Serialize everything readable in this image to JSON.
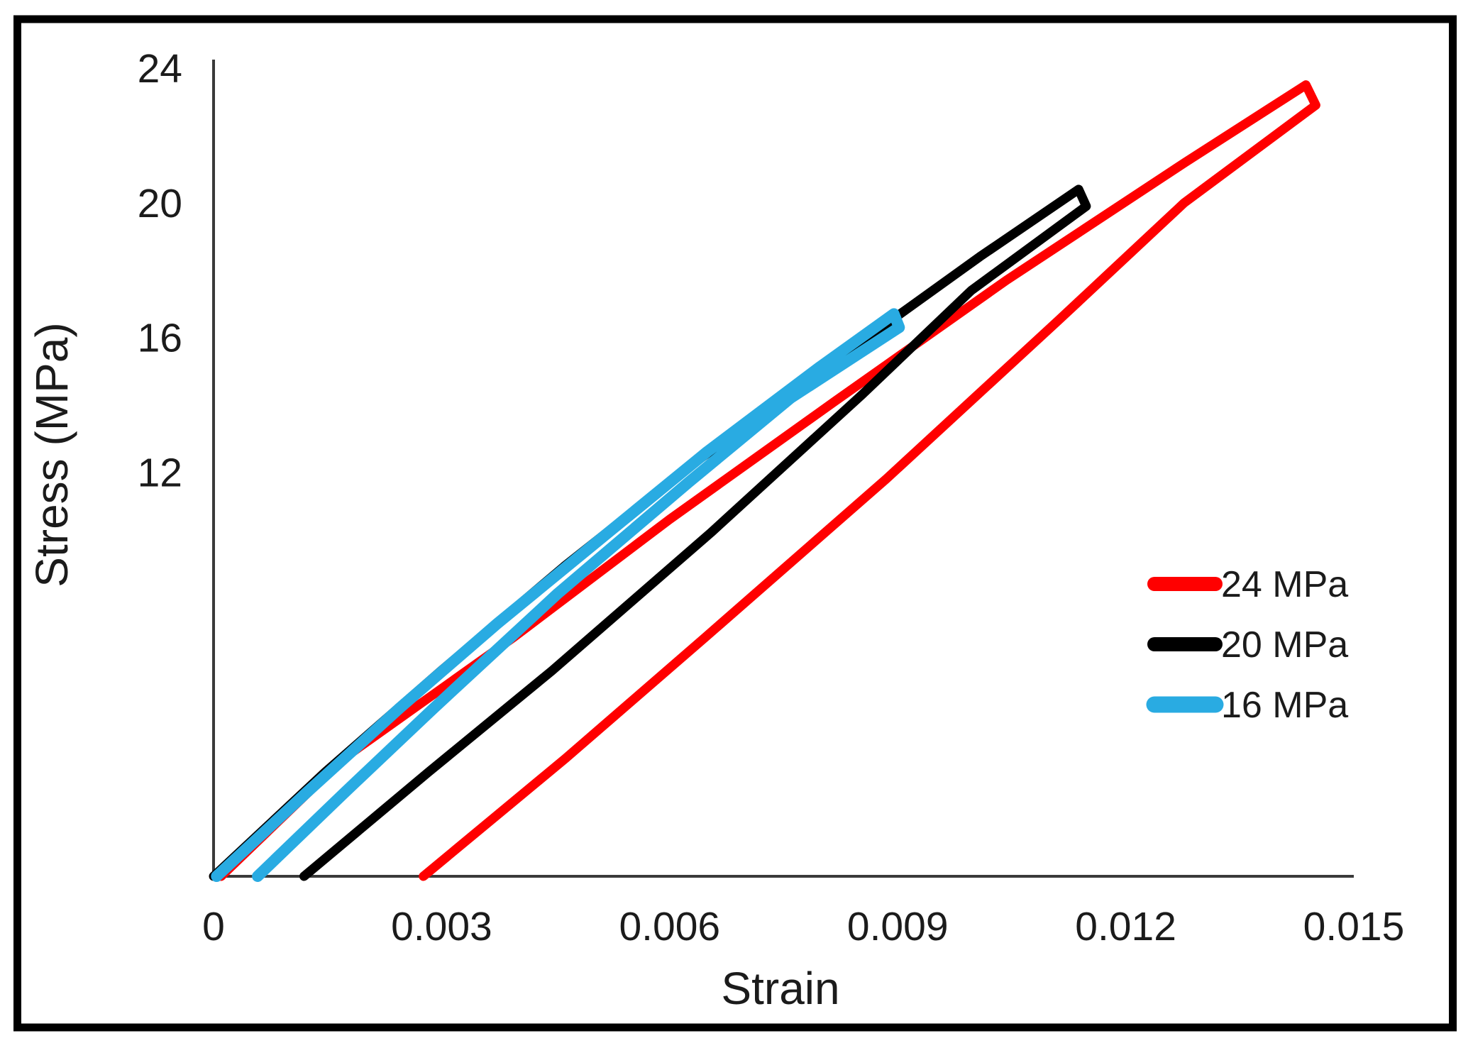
{
  "figure": {
    "background": "#ffffff",
    "border_color": "#000000",
    "axis_color": "#3a3a3a",
    "text_color": "#1b1b1b"
  },
  "chart_data": {
    "type": "line",
    "title": "",
    "xlabel": "Strain",
    "ylabel": "Stress (MPa)",
    "xlim": [
      0,
      0.015
    ],
    "ylim": [
      0,
      24
    ],
    "grid": false,
    "legend_position": "right-middle",
    "xticks": [
      {
        "value": 0,
        "label": "0"
      },
      {
        "value": 0.003,
        "label": "0.003"
      },
      {
        "value": 0.006,
        "label": "0.006"
      },
      {
        "value": 0.009,
        "label": "0.009"
      },
      {
        "value": 0.012,
        "label": "0.012"
      },
      {
        "value": 0.015,
        "label": "0.015"
      }
    ],
    "yticks": [
      {
        "value": 12,
        "label": "12"
      },
      {
        "value": 16,
        "label": "16"
      },
      {
        "value": 20,
        "label": "20"
      },
      {
        "value": 24,
        "label": "24"
      }
    ],
    "series": [
      {
        "name": "24 MPa",
        "color": "#ff0000",
        "line_width": 13,
        "peak_strain": 0.0144,
        "peak_stress": 23.5,
        "residual_strain": 0.0028,
        "points": [
          [
            0.0001,
            0
          ],
          [
            0.00171,
            3.5
          ],
          [
            0.00395,
            7.1
          ],
          [
            0.006,
            10.6
          ],
          [
            0.00817,
            14.1
          ],
          [
            0.01043,
            17.7
          ],
          [
            0.01278,
            21.2
          ],
          [
            0.01437,
            23.5
          ],
          [
            0.0145,
            22.9
          ],
          [
            0.01277,
            20.0
          ],
          [
            0.01111,
            16.5
          ],
          [
            0.00885,
            11.8
          ],
          [
            0.00647,
            7.1
          ],
          [
            0.00463,
            3.5
          ],
          [
            0.00276,
            0
          ]
        ]
      },
      {
        "name": "20 MPa",
        "color": "#000000",
        "line_width": 13,
        "peak_strain": 0.0114,
        "peak_stress": 20.4,
        "residual_strain": 0.0012,
        "points": [
          [
            0.0,
            0
          ],
          [
            0.00147,
            3.1
          ],
          [
            0.00299,
            6.1
          ],
          [
            0.00461,
            9.2
          ],
          [
            0.00634,
            12.3
          ],
          [
            0.00817,
            15.3
          ],
          [
            0.01008,
            18.4
          ],
          [
            0.01138,
            20.4
          ],
          [
            0.01148,
            19.9
          ],
          [
            0.00997,
            17.4
          ],
          [
            0.00853,
            14.3
          ],
          [
            0.00654,
            10.2
          ],
          [
            0.00445,
            6.1
          ],
          [
            0.00283,
            3.1
          ],
          [
            0.00119,
            0
          ]
        ]
      },
      {
        "name": "16 MPa",
        "color": "#29abe2",
        "line_width": 16,
        "peak_strain": 0.009,
        "peak_stress": 16.7,
        "residual_strain": 0.0006,
        "points": [
          [
            4e-05,
            0
          ],
          [
            0.00123,
            2.5
          ],
          [
            0.00245,
            5.0
          ],
          [
            0.00373,
            7.5
          ],
          [
            0.00508,
            10.0
          ],
          [
            0.00649,
            12.6
          ],
          [
            0.00796,
            15.1
          ],
          [
            0.00895,
            16.7
          ],
          [
            0.00902,
            16.3
          ],
          [
            0.00759,
            14.2
          ],
          [
            0.00625,
            11.7
          ],
          [
            0.00453,
            8.4
          ],
          [
            0.0029,
            5.0
          ],
          [
            0.00173,
            2.5
          ],
          [
            0.00058,
            0
          ]
        ]
      }
    ]
  }
}
